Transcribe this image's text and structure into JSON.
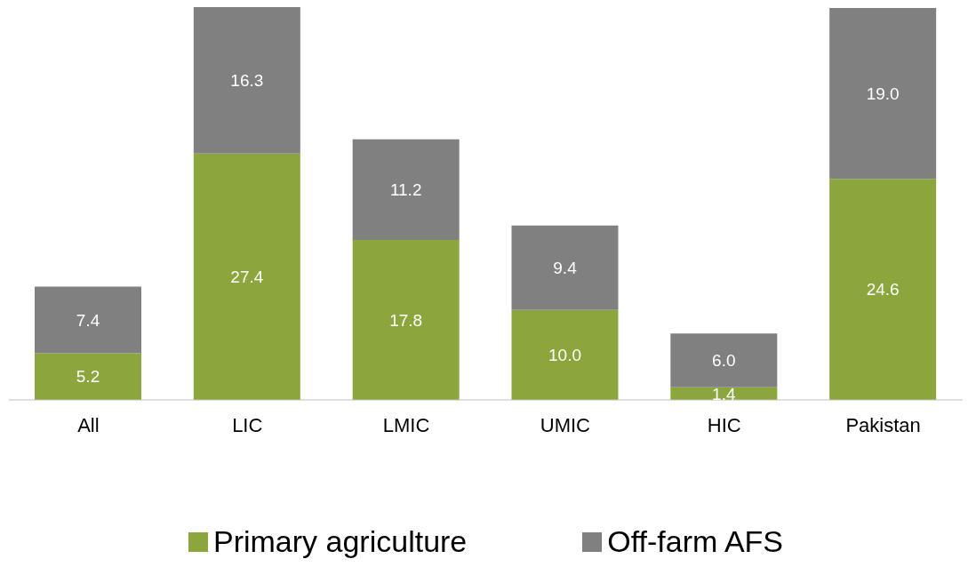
{
  "chart_data": {
    "type": "bar",
    "stacked": true,
    "categories": [
      "All",
      "LIC",
      "LMIC",
      "UMIC",
      "HIC",
      "Pakistan"
    ],
    "series": [
      {
        "name": "Primary agriculture",
        "color": "#8ba63c",
        "values": [
          5.2,
          27.4,
          17.8,
          10.0,
          1.4,
          24.6
        ],
        "value_labels": [
          "5.2",
          "27.4",
          "17.8",
          "10.0",
          "1.4",
          "24.6"
        ]
      },
      {
        "name": "Off-farm AFS",
        "color": "#808080",
        "values": [
          7.4,
          16.3,
          11.2,
          9.4,
          6.0,
          19.0
        ],
        "value_labels": [
          "7.4",
          "16.3",
          "11.2",
          "9.4",
          "6.0",
          "19.0"
        ]
      }
    ],
    "grid": false,
    "legend": "bottom"
  }
}
